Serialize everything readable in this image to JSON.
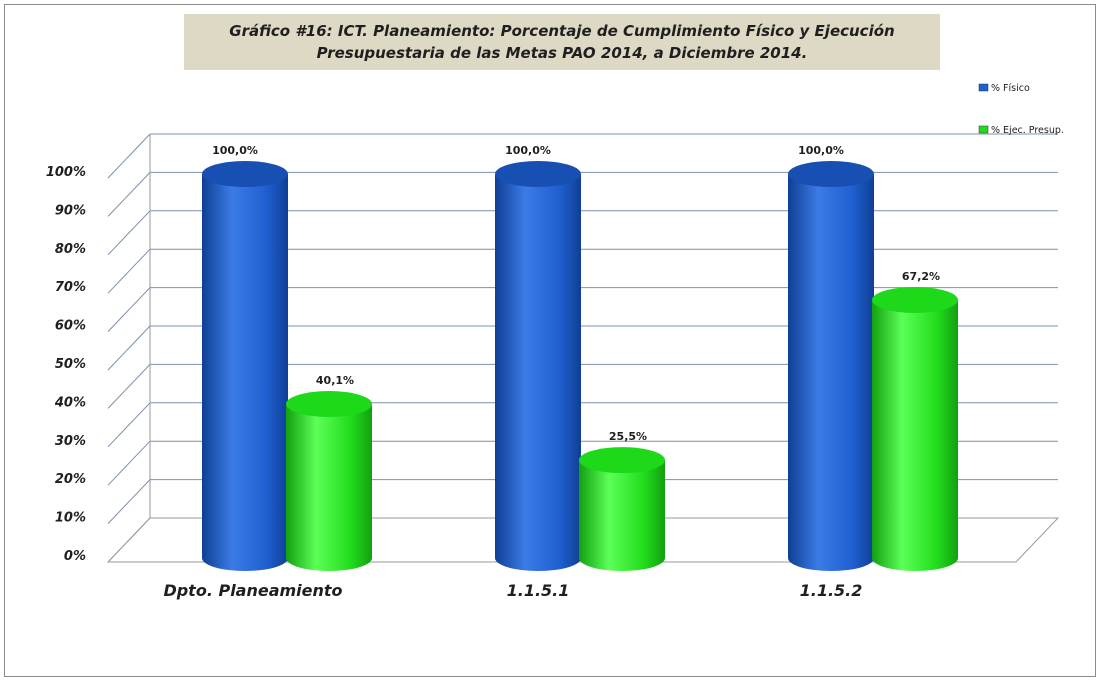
{
  "chart_data": {
    "type": "bar",
    "title_lines": [
      "Gráfico #16: ICT.  Planeamiento: Porcentaje de  Cumplimiento Físico y  Ejecución",
      "Presupuestaria de las Metas  PAO 2014, a  Diciembre 2014."
    ],
    "categories": [
      "Dpto. Planeamiento",
      "1.1.5.1",
      "1.1.5.2"
    ],
    "series": [
      {
        "name": "% Físico",
        "values": [
          100.0,
          100.0,
          100.0
        ],
        "labels": [
          "100,0%",
          "100,0%",
          "100,0%"
        ],
        "color": "#1f5fd0"
      },
      {
        "name": "% Ejec. Presup.",
        "values": [
          40.1,
          25.5,
          67.2
        ],
        "labels": [
          "40,1%",
          "25,5%",
          "67,2%"
        ],
        "color": "#22dd1c"
      }
    ],
    "y_ticks": [
      "0%",
      "10%",
      "20%",
      "30%",
      "40%",
      "50%",
      "60%",
      "70%",
      "80%",
      "90%",
      "100%"
    ],
    "ylim": [
      0,
      100
    ],
    "grid": true,
    "legend_position": "top-right",
    "style": "3d-cylinder"
  }
}
